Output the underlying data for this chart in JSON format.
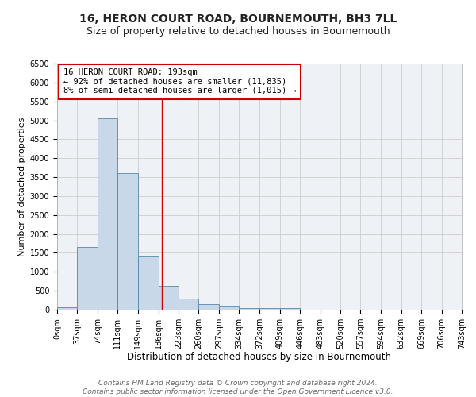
{
  "title": "16, HERON COURT ROAD, BOURNEMOUTH, BH3 7LL",
  "subtitle": "Size of property relative to detached houses in Bournemouth",
  "xlabel": "Distribution of detached houses by size in Bournemouth",
  "ylabel": "Number of detached properties",
  "bin_edges": [
    0,
    37,
    74,
    111,
    149,
    186,
    223,
    260,
    297,
    334,
    372,
    409,
    446,
    483,
    520,
    557,
    594,
    632,
    669,
    706,
    743
  ],
  "bar_heights": [
    60,
    1650,
    5050,
    3600,
    1400,
    620,
    300,
    150,
    90,
    50,
    50,
    50,
    0,
    0,
    0,
    0,
    0,
    0,
    0,
    0
  ],
  "bar_facecolor": "#c8d8e8",
  "bar_edgecolor": "#5588aa",
  "property_size": 193,
  "vline_color": "#cc0000",
  "annotation_line1": "16 HERON COURT ROAD: 193sqm",
  "annotation_line2": "← 92% of detached houses are smaller (11,835)",
  "annotation_line3": "8% of semi-detached houses are larger (1,015) →",
  "annotation_box_edgecolor": "#cc0000",
  "annotation_box_facecolor": "#ffffff",
  "ylim": [
    0,
    6500
  ],
  "yticks": [
    0,
    500,
    1000,
    1500,
    2000,
    2500,
    3000,
    3500,
    4000,
    4500,
    5000,
    5500,
    6000,
    6500
  ],
  "grid_color": "#cccccc",
  "bg_color": "#eef2f7",
  "footer_line1": "Contains HM Land Registry data © Crown copyright and database right 2024.",
  "footer_line2": "Contains public sector information licensed under the Open Government Licence v3.0.",
  "title_fontsize": 10,
  "subtitle_fontsize": 9,
  "xlabel_fontsize": 8.5,
  "ylabel_fontsize": 8,
  "annot_fontsize": 7.5,
  "tick_fontsize": 7,
  "footer_fontsize": 6.5
}
